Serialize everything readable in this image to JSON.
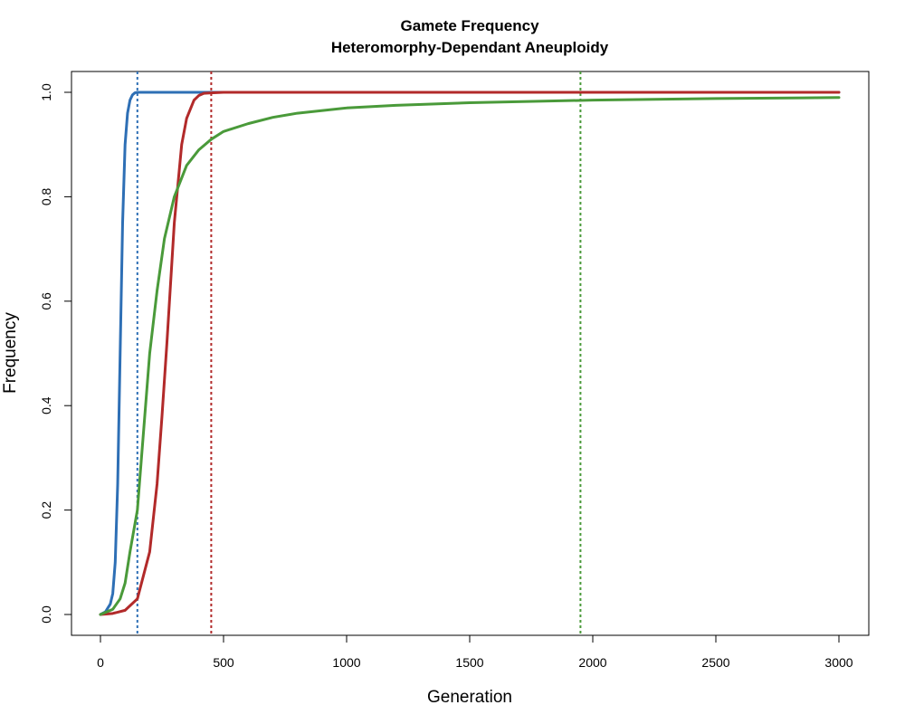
{
  "chart_data": {
    "type": "line",
    "title": "Gamete Frequency",
    "subtitle": "Heteromorphy-Dependant Aneuploidy",
    "xlabel": "Generation",
    "ylabel": "Frequency",
    "xlim": [
      0,
      3000
    ],
    "ylim": [
      0,
      1
    ],
    "xticks": [
      0,
      500,
      1000,
      1500,
      2000,
      2500,
      3000
    ],
    "xtick_labels": [
      "0",
      "500",
      "1000",
      "1500",
      "2000",
      "2500",
      "3000"
    ],
    "yticks": [
      0,
      0.2,
      0.4,
      0.6,
      0.8,
      1.0
    ],
    "ytick_labels": [
      "0.0",
      "0.2",
      "0.4",
      "0.6",
      "0.8",
      "1.0"
    ],
    "grid": false,
    "series": [
      {
        "color": "#2e6fb5",
        "x": [
          0,
          20,
          40,
          50,
          60,
          70,
          80,
          90,
          100,
          110,
          120,
          130,
          140,
          150,
          200,
          500,
          1000,
          2000,
          3000
        ],
        "y": [
          0.0,
          0.005,
          0.02,
          0.04,
          0.1,
          0.25,
          0.5,
          0.75,
          0.9,
          0.96,
          0.985,
          0.995,
          0.999,
          1.0,
          1.0,
          1.0,
          1.0,
          1.0,
          1.0
        ]
      },
      {
        "color": "#b22a2a",
        "x": [
          0,
          50,
          100,
          150,
          200,
          230,
          250,
          270,
          300,
          330,
          350,
          380,
          400,
          420,
          450,
          500,
          1000,
          2000,
          3000
        ],
        "y": [
          0.0,
          0.002,
          0.008,
          0.03,
          0.12,
          0.25,
          0.38,
          0.52,
          0.75,
          0.9,
          0.95,
          0.985,
          0.994,
          0.998,
          0.999,
          1.0,
          1.0,
          1.0,
          1.0
        ]
      },
      {
        "color": "#4a9a3a",
        "x": [
          0,
          50,
          80,
          100,
          120,
          150,
          180,
          200,
          230,
          260,
          300,
          350,
          400,
          450,
          500,
          600,
          700,
          800,
          1000,
          1200,
          1500,
          2000,
          2500,
          3000
        ],
        "y": [
          0.0,
          0.01,
          0.03,
          0.06,
          0.12,
          0.2,
          0.38,
          0.5,
          0.62,
          0.72,
          0.8,
          0.86,
          0.89,
          0.91,
          0.925,
          0.94,
          0.952,
          0.96,
          0.97,
          0.975,
          0.98,
          0.985,
          0.988,
          0.99
        ]
      }
    ],
    "vlines": [
      {
        "x": 150,
        "color": "#2e6fb5"
      },
      {
        "x": 450,
        "color": "#b22a2a"
      },
      {
        "x": 1950,
        "color": "#4a9a3a"
      }
    ]
  }
}
